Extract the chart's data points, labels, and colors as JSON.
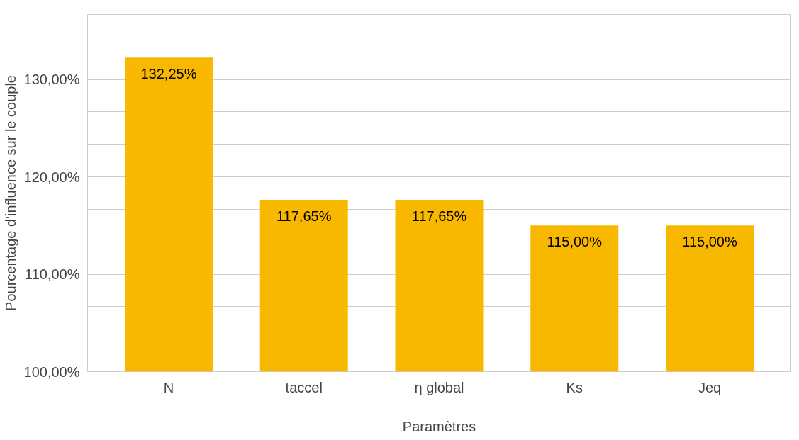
{
  "chart_data": {
    "type": "bar",
    "xlabel": "Paramètres",
    "ylabel": "Pourcentage d'influence sur le couple",
    "categories": [
      "N",
      "taccel",
      "η global",
      "Ks",
      "Jeq"
    ],
    "values": [
      132.25,
      117.65,
      117.65,
      115.0,
      115.0
    ],
    "color": "#f9b800",
    "value_labels": [
      "132,25%",
      "117,65%",
      "117,65%",
      "115,00%",
      "115,00%"
    ],
    "ylim": [
      100,
      136.67
    ],
    "yticks": [
      {
        "value": 100,
        "label": "100,00%"
      },
      {
        "value": 103.33,
        "label": null
      },
      {
        "value": 106.67,
        "label": null
      },
      {
        "value": 110,
        "label": "110,00%"
      },
      {
        "value": 113.33,
        "label": null
      },
      {
        "value": 116.67,
        "label": null
      },
      {
        "value": 120,
        "label": "120,00%"
      },
      {
        "value": 123.33,
        "label": null
      },
      {
        "value": 126.67,
        "label": null
      },
      {
        "value": 130,
        "label": "130,00%"
      },
      {
        "value": 133.33,
        "label": null
      },
      {
        "value": 136.67,
        "label": null
      }
    ],
    "grid": "y"
  }
}
